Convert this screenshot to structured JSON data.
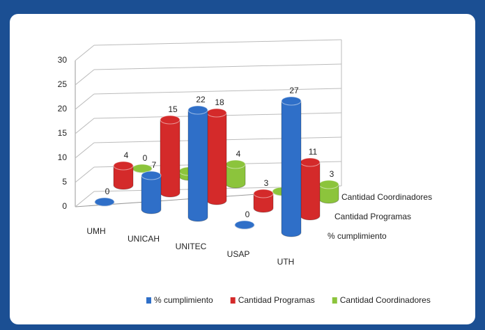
{
  "chart_data": {
    "type": "bar3d",
    "categories": [
      "UMH",
      "UNICAH",
      "UNITEC",
      "USAP",
      "UTH"
    ],
    "series": [
      {
        "name": "% cumplimiento",
        "color": "#2f6fc8",
        "values": [
          0,
          7,
          22,
          0,
          27
        ]
      },
      {
        "name": "Cantidad Programas",
        "color": "#d42a2a",
        "values": [
          4,
          15,
          18,
          3,
          11
        ]
      },
      {
        "name": "Cantidad Coordinadores",
        "color": "#8cc43c",
        "values": [
          0,
          1,
          4,
          0,
          3
        ]
      }
    ],
    "ylim": [
      0,
      30
    ],
    "yticks": [
      0,
      5,
      10,
      15,
      20,
      25,
      30
    ],
    "grid": true
  }
}
